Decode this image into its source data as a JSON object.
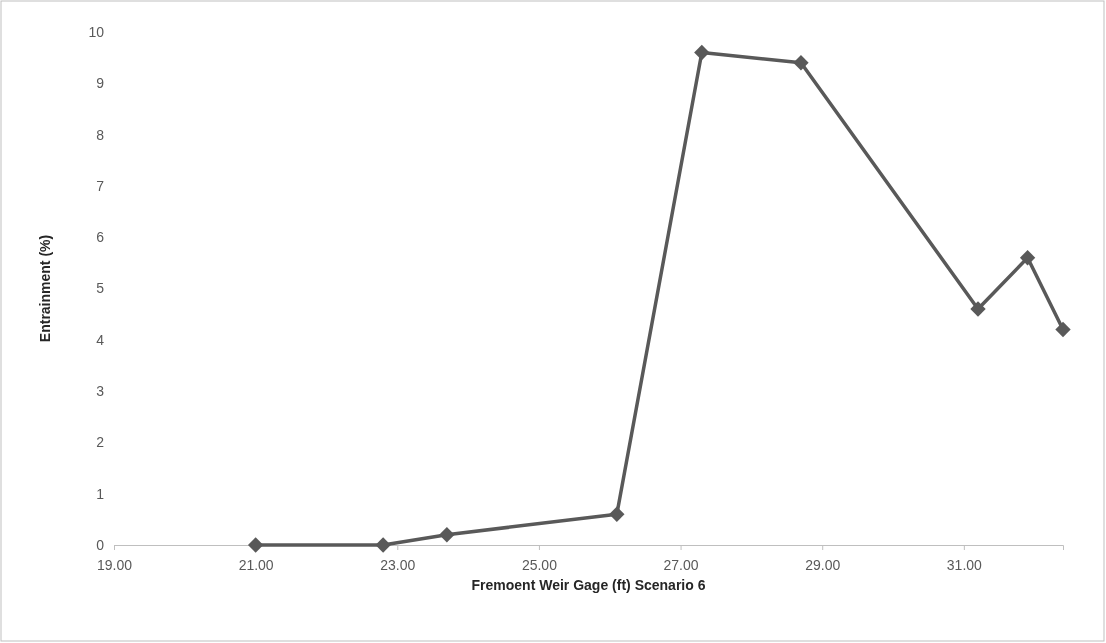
{
  "chart_data": {
    "type": "line",
    "xlabel": "Fremoent Weir Gage (ft) Scenario 6",
    "ylabel": "Entrainment (%)",
    "x": [
      21.0,
      22.8,
      23.7,
      26.1,
      27.3,
      28.7,
      31.2,
      31.9,
      32.4
    ],
    "series": [
      {
        "color": "#595959",
        "values": [
          0,
          0,
          0.2,
          0.6,
          9.6,
          9.4,
          4.6,
          5.6,
          4.2
        ]
      }
    ],
    "xlim": [
      19,
      32.4
    ],
    "xticks": [
      {
        "value": 19,
        "label": "19.00"
      },
      {
        "value": 21,
        "label": "21.00"
      },
      {
        "value": 23,
        "label": "23.00"
      },
      {
        "value": 25,
        "label": "25.00"
      },
      {
        "value": 27,
        "label": "27.00"
      },
      {
        "value": 29,
        "label": "29.00"
      },
      {
        "value": 31,
        "label": "31.00"
      }
    ],
    "ylim": [
      0,
      10
    ],
    "yticks": [
      0,
      1,
      2,
      3,
      4,
      5,
      6,
      7,
      8,
      9,
      10
    ],
    "grid": false,
    "marker": "diamond",
    "line_style": "solid"
  }
}
